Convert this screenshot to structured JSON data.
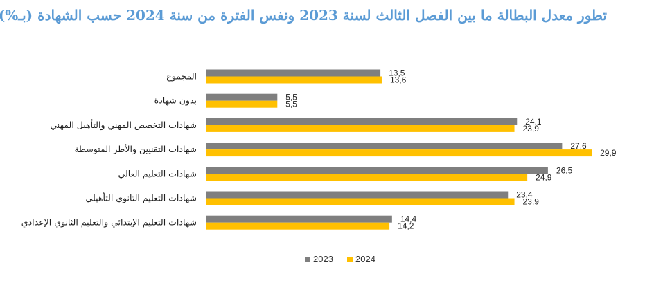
{
  "chart_data": {
    "type": "bar",
    "orientation": "horizontal",
    "title": "تطور معدل البطالة ما بين الفصل الثالث لسنة 2023 ونفس الفترة من سنة 2024 حسب الشهادة (بـ%)",
    "categories": [
      "المجموع",
      "بدون شهادة",
      "شهادات التخصص المهني والتأهيل المهني",
      "شهادات التقنيين والأطر المتوسطة",
      "شهادات التعليم العالي",
      "شهادات التعليم الثانوي التأهيلي",
      "شهادات التعليم الإبتدائي والتعليم الثانوي الإعدادي"
    ],
    "series": [
      {
        "name": "2023",
        "color": "#7f7f7f",
        "values": [
          13.5,
          5.5,
          24.1,
          27.6,
          26.5,
          23.4,
          14.4
        ],
        "labels": [
          "13,5",
          "5,5",
          "24,1",
          "27,6",
          "26,5",
          "23,4",
          "14,4"
        ]
      },
      {
        "name": "2024",
        "color": "#ffc000",
        "values": [
          13.6,
          5.5,
          23.9,
          29.9,
          24.9,
          23.9,
          14.2
        ],
        "labels": [
          "13,6",
          "5,5",
          "23,9",
          "29,9",
          "24,9",
          "23,9",
          "14,2"
        ]
      }
    ],
    "xlim": [
      0,
      30
    ],
    "grid": false,
    "legend_position": "bottom"
  }
}
